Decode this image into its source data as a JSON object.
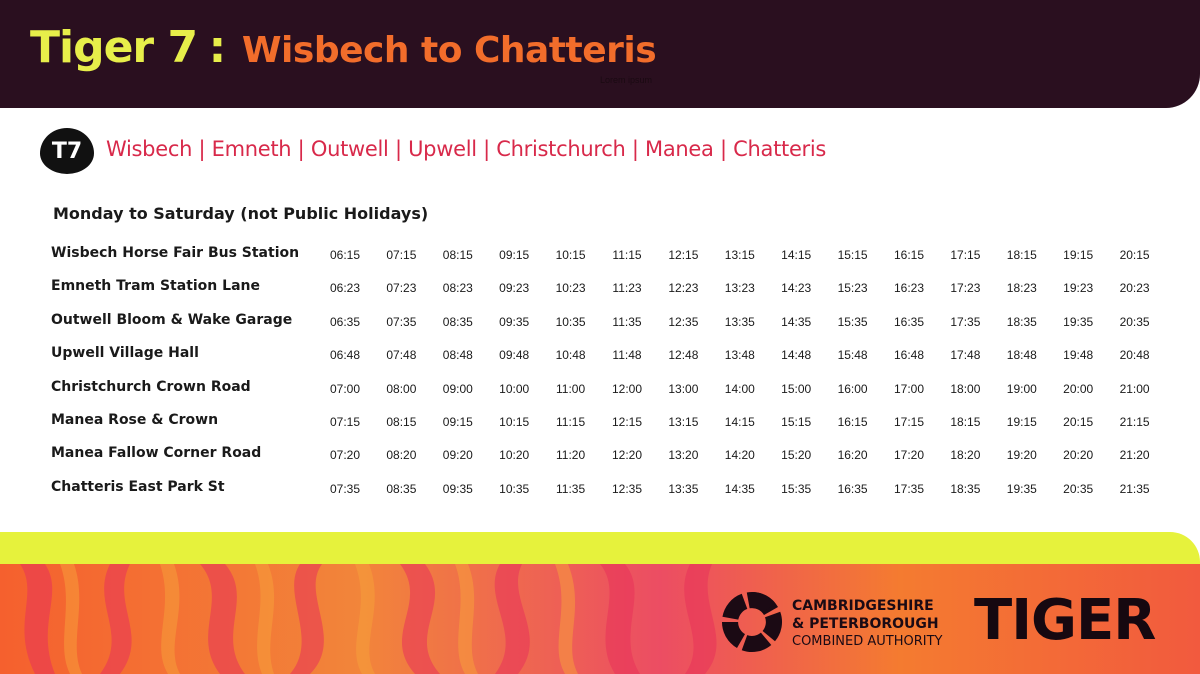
{
  "header": {
    "route": "Tiger 7",
    "separator": ":",
    "destination": "Wisbech to Chatteris",
    "placeholder_text": "Lorem ipsum"
  },
  "route_badge": "T7",
  "stops_line": "Wisbech | Emneth | Outwell | Upwell | Christchurch | Manea | Chatteris",
  "days_label": "Monday to Saturday (not Public Holidays)",
  "timetable": [
    {
      "stop": "Wisbech Horse Fair Bus Station",
      "times": [
        "06:15",
        "07:15",
        "08:15",
        "09:15",
        "10:15",
        "11:15",
        "12:15",
        "13:15",
        "14:15",
        "15:15",
        "16:15",
        "17:15",
        "18:15",
        "19:15",
        "20:15"
      ]
    },
    {
      "stop": "Emneth Tram Station Lane",
      "times": [
        "06:23",
        "07:23",
        "08:23",
        "09:23",
        "10:23",
        "11:23",
        "12:23",
        "13:23",
        "14:23",
        "15:23",
        "16:23",
        "17:23",
        "18:23",
        "19:23",
        "20:23"
      ]
    },
    {
      "stop": "Outwell Bloom & Wake Garage",
      "times": [
        "06:35",
        "07:35",
        "08:35",
        "09:35",
        "10:35",
        "11:35",
        "12:35",
        "13:35",
        "14:35",
        "15:35",
        "16:35",
        "17:35",
        "18:35",
        "19:35",
        "20:35"
      ]
    },
    {
      "stop": "Upwell Village Hall",
      "times": [
        "06:48",
        "07:48",
        "08:48",
        "09:48",
        "10:48",
        "11:48",
        "12:48",
        "13:48",
        "14:48",
        "15:48",
        "16:48",
        "17:48",
        "18:48",
        "19:48",
        "20:48"
      ]
    },
    {
      "stop": "Christchurch Crown Road",
      "times": [
        "07:00",
        "08:00",
        "09:00",
        "10:00",
        "11:00",
        "12:00",
        "13:00",
        "14:00",
        "15:00",
        "16:00",
        "17:00",
        "18:00",
        "19:00",
        "20:00",
        "21:00"
      ]
    },
    {
      "stop": "Manea Rose & Crown",
      "times": [
        "07:15",
        "08:15",
        "09:15",
        "10:15",
        "11:15",
        "12:15",
        "13:15",
        "14:15",
        "15:15",
        "16:15",
        "17:15",
        "18:15",
        "19:15",
        "20:15",
        "21:15"
      ]
    },
    {
      "stop": "Manea Fallow Corner Road",
      "times": [
        "07:20",
        "08:20",
        "09:20",
        "10:20",
        "11:20",
        "12:20",
        "13:20",
        "14:20",
        "15:20",
        "16:20",
        "17:20",
        "18:20",
        "19:20",
        "20:20",
        "21:20"
      ]
    },
    {
      "stop": "Chatteris East Park St",
      "times": [
        "07:35",
        "08:35",
        "09:35",
        "10:35",
        "11:35",
        "12:35",
        "13:35",
        "14:35",
        "15:35",
        "16:35",
        "17:35",
        "18:35",
        "19:35",
        "20:35",
        "21:35"
      ]
    }
  ],
  "footer": {
    "authority_line1": "CAMBRIDGESHIRE",
    "authority_line2": "& PETERBOROUGH",
    "authority_line3": "COMBINED AUTHORITY",
    "brand": "TIGER"
  },
  "colors": {
    "header_bg": "#2a0f1f",
    "route_yellow": "#e7ee4a",
    "destination_orange": "#f26d2b",
    "stops_red": "#d8294a",
    "band_yellow": "#e6f23c"
  }
}
